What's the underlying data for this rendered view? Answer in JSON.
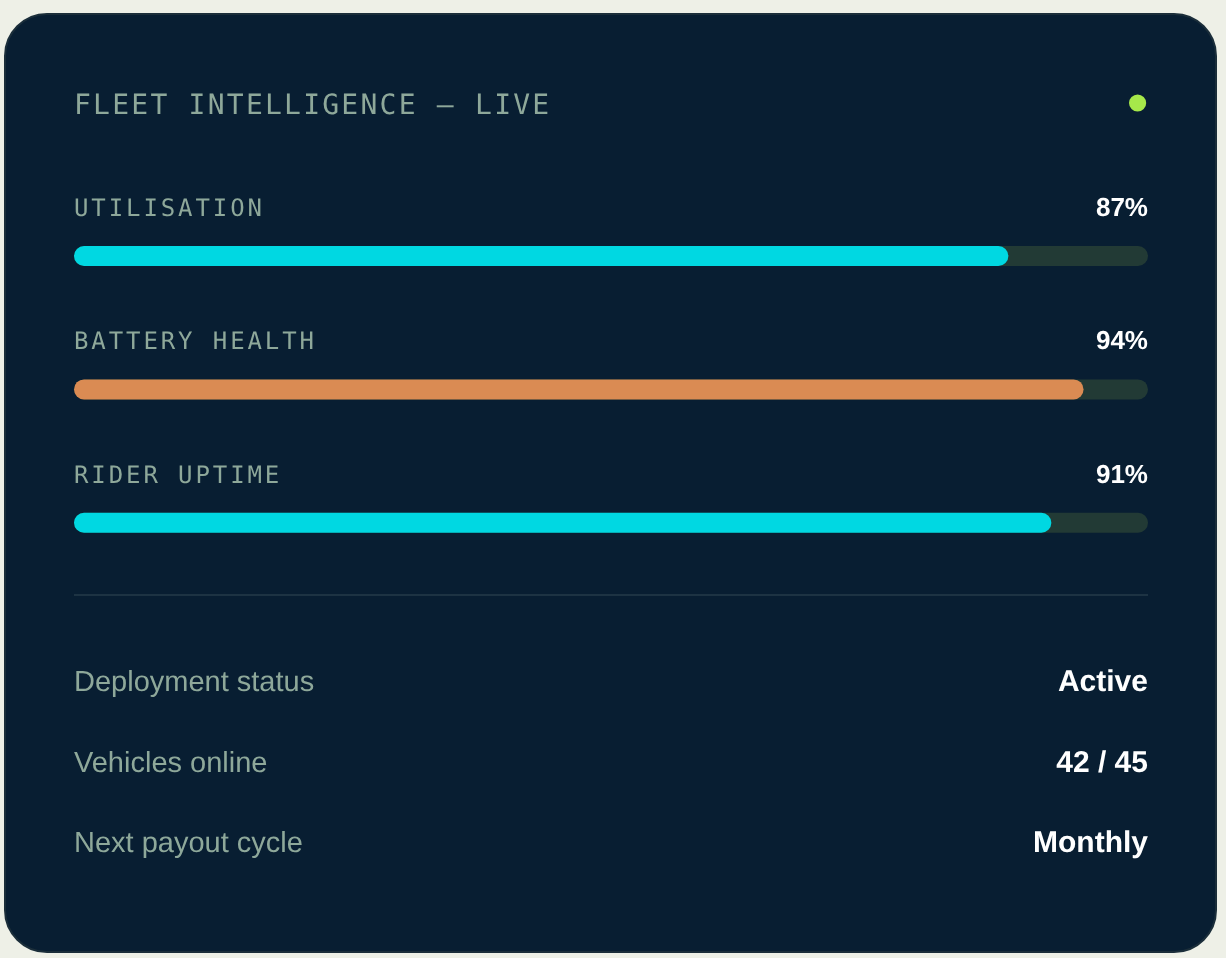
{
  "chart_data": {
    "type": "bar",
    "orientation": "horizontal",
    "title": "FLEET INTELLIGENCE — LIVE",
    "categories": [
      "UTILISATION",
      "BATTERY HEALTH",
      "RIDER UPTIME"
    ],
    "values": [
      87,
      94,
      91
    ],
    "colors": [
      "#00d8e2",
      "#da8b53",
      "#00d8e2"
    ],
    "xlim": [
      0,
      100
    ],
    "value_labels": [
      "87%",
      "94%",
      "91%"
    ],
    "tick_labels": "y",
    "annotations": [
      "Deployment status",
      "Active",
      "Vehicles online",
      "42 / 45",
      "Next payout cycle",
      "Monthly"
    ]
  }
}
